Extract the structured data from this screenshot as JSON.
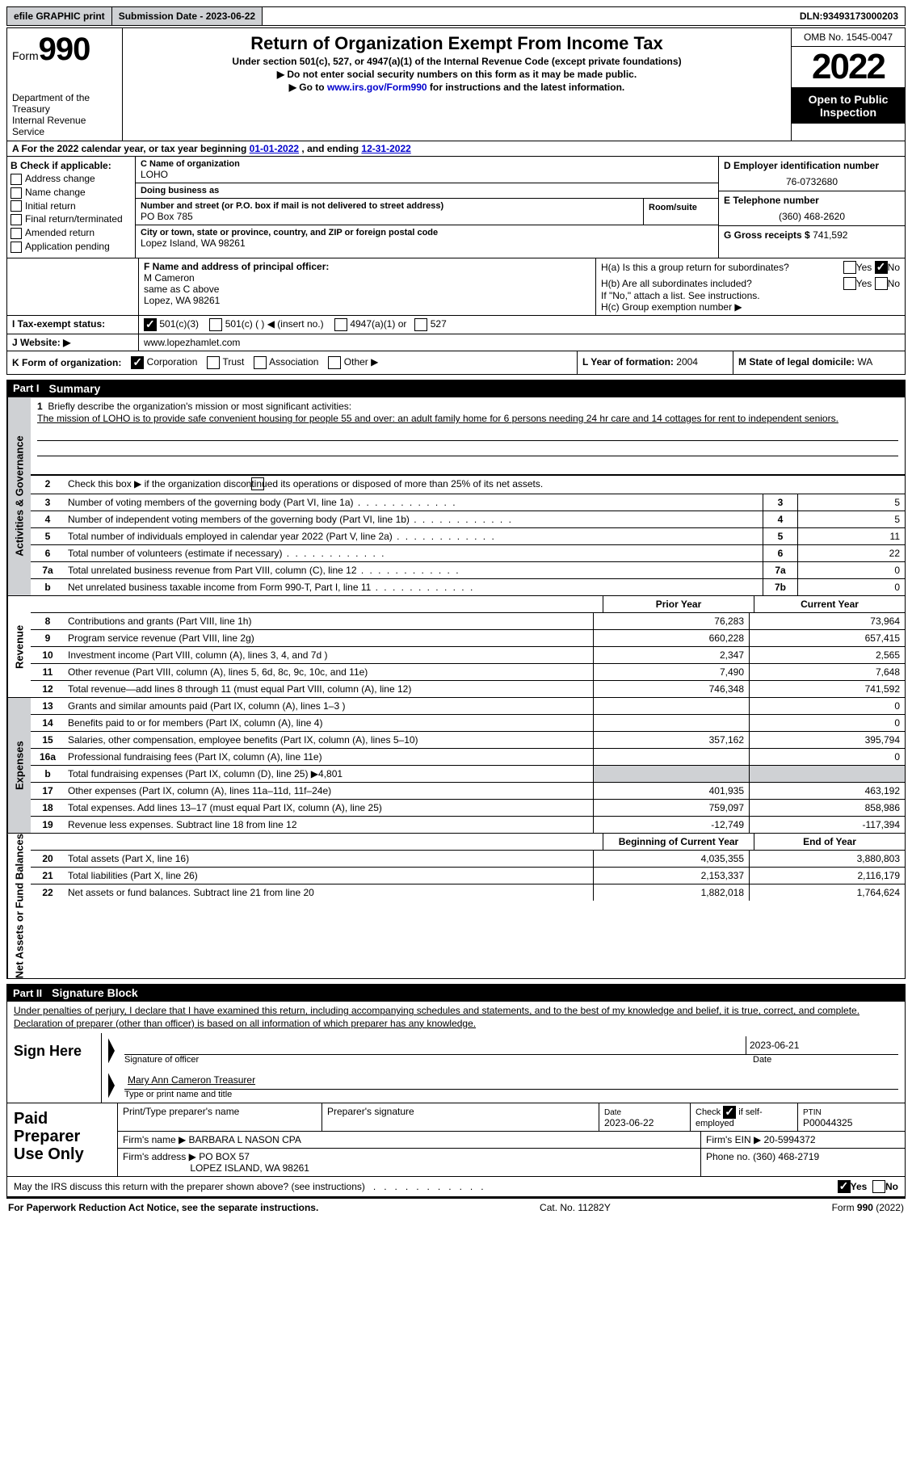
{
  "topbar": {
    "efile": "efile GRAPHIC print",
    "submission": "Submission Date - 2023-06-22",
    "dln_label": "DLN:",
    "dln": "93493173000203"
  },
  "header": {
    "form_prefix": "Form",
    "form_number": "990",
    "dept": "Department of the Treasury",
    "irs": "Internal Revenue Service",
    "title": "Return of Organization Exempt From Income Tax",
    "subtitle": "Under section 501(c), 527, or 4947(a)(1) of the Internal Revenue Code (except private foundations)",
    "warning1": "▶ Do not enter social security numbers on this form as it may be made public.",
    "warning2_prefix": "▶ Go to ",
    "warning2_link": "www.irs.gov/Form990",
    "warning2_suffix": " for instructions and the latest information.",
    "omb": "OMB No. 1545-0047",
    "year": "2022",
    "open": "Open to Public Inspection"
  },
  "sectionA": {
    "prefix": "A For the 2022 calendar year, or tax year beginning ",
    "begin": "01-01-2022",
    "mid": "  , and ending ",
    "end": "12-31-2022"
  },
  "entity": {
    "b_label": "B Check if applicable:",
    "checks": [
      "Address change",
      "Name change",
      "Initial return",
      "Final return/terminated",
      "Amended return",
      "Application pending"
    ],
    "c_label": "C Name of organization",
    "name": "LOHO",
    "dba_label": "Doing business as",
    "dba": "",
    "street_label": "Number and street (or P.O. box if mail is not delivered to street address)",
    "room_label": "Room/suite",
    "street": "PO Box 785",
    "city_label": "City or town, state or province, country, and ZIP or foreign postal code",
    "city": "Lopez Island, WA  98261",
    "d_label": "D Employer identification number",
    "ein": "76-0732680",
    "e_label": "E Telephone number",
    "phone": "(360) 468-2620",
    "g_label": "G Gross receipts $",
    "gross": "741,592"
  },
  "officer": {
    "f_label": "F Name and address of principal officer:",
    "name": "M Cameron",
    "addr1": "same as C above",
    "addr2": "Lopez, WA  98261",
    "ha": "H(a)  Is this a group return for subordinates?",
    "hb": "H(b)  Are all subordinates included?",
    "hb_note": "If \"No,\" attach a list. See instructions.",
    "hc": "H(c)  Group exemption number ▶",
    "yes": "Yes",
    "no": "No"
  },
  "status": {
    "i_label": "I  Tax-exempt status:",
    "s1": "501(c)(3)",
    "s2": "501(c) (    ) ◀ (insert no.)",
    "s3": "4947(a)(1) or",
    "s4": "527",
    "j_label": "J  Website: ▶",
    "website": "www.lopezhamlet.com"
  },
  "formorg": {
    "k_label": "K Form of organization:",
    "corp": "Corporation",
    "trust": "Trust",
    "assoc": "Association",
    "other": "Other ▶",
    "l_label": "L Year of formation:",
    "l_val": "2004",
    "m_label": "M State of legal domicile:",
    "m_val": "WA"
  },
  "partI": {
    "num": "Part I",
    "title": "Summary",
    "mission_label": "Briefly describe the organization's mission or most significant activities:",
    "mission": "The mission of LOHO is to provide safe convenient housing for people 55 and over: an adult family home for 6 persons needing 24 hr care and 14 cottages for rent to independent seniors.",
    "line2": "Check this box ▶      if the organization discontinued its operations or disposed of more than 25% of its net assets.",
    "vtab_ag": "Activities & Governance",
    "vtab_rev": "Revenue",
    "vtab_exp": "Expenses",
    "vtab_net": "Net Assets or Fund Balances",
    "prior": "Prior Year",
    "current": "Current Year",
    "begin": "Beginning of Current Year",
    "endyr": "End of Year",
    "lines_single": [
      {
        "n": "3",
        "d": "Number of voting members of the governing body (Part VI, line 1a)",
        "box": "3",
        "v": "5"
      },
      {
        "n": "4",
        "d": "Number of independent voting members of the governing body (Part VI, line 1b)",
        "box": "4",
        "v": "5"
      },
      {
        "n": "5",
        "d": "Total number of individuals employed in calendar year 2022 (Part V, line 2a)",
        "box": "5",
        "v": "11"
      },
      {
        "n": "6",
        "d": "Total number of volunteers (estimate if necessary)",
        "box": "6",
        "v": "22"
      },
      {
        "n": "7a",
        "d": "Total unrelated business revenue from Part VIII, column (C), line 12",
        "box": "7a",
        "v": "0"
      },
      {
        "n": "b",
        "d": "Net unrelated business taxable income from Form 990-T, Part I, line 11",
        "box": "7b",
        "v": "0"
      }
    ],
    "revenue": [
      {
        "n": "8",
        "d": "Contributions and grants (Part VIII, line 1h)",
        "p": "76,283",
        "c": "73,964"
      },
      {
        "n": "9",
        "d": "Program service revenue (Part VIII, line 2g)",
        "p": "660,228",
        "c": "657,415"
      },
      {
        "n": "10",
        "d": "Investment income (Part VIII, column (A), lines 3, 4, and 7d )",
        "p": "2,347",
        "c": "2,565"
      },
      {
        "n": "11",
        "d": "Other revenue (Part VIII, column (A), lines 5, 6d, 8c, 9c, 10c, and 11e)",
        "p": "7,490",
        "c": "7,648"
      },
      {
        "n": "12",
        "d": "Total revenue—add lines 8 through 11 (must equal Part VIII, column (A), line 12)",
        "p": "746,348",
        "c": "741,592"
      }
    ],
    "expenses": [
      {
        "n": "13",
        "d": "Grants and similar amounts paid (Part IX, column (A), lines 1–3 )",
        "p": "",
        "c": "0"
      },
      {
        "n": "14",
        "d": "Benefits paid to or for members (Part IX, column (A), line 4)",
        "p": "",
        "c": "0"
      },
      {
        "n": "15",
        "d": "Salaries, other compensation, employee benefits (Part IX, column (A), lines 5–10)",
        "p": "357,162",
        "c": "395,794"
      },
      {
        "n": "16a",
        "d": "Professional fundraising fees (Part IX, column (A), line 11e)",
        "p": "",
        "c": "0"
      },
      {
        "n": "b",
        "d": "Total fundraising expenses (Part IX, column (D), line 25) ▶4,801",
        "p": "shade",
        "c": "shade"
      },
      {
        "n": "17",
        "d": "Other expenses (Part IX, column (A), lines 11a–11d, 11f–24e)",
        "p": "401,935",
        "c": "463,192"
      },
      {
        "n": "18",
        "d": "Total expenses. Add lines 13–17 (must equal Part IX, column (A), line 25)",
        "p": "759,097",
        "c": "858,986"
      },
      {
        "n": "19",
        "d": "Revenue less expenses. Subtract line 18 from line 12",
        "p": "-12,749",
        "c": "-117,394"
      }
    ],
    "netassets": [
      {
        "n": "20",
        "d": "Total assets (Part X, line 16)",
        "p": "4,035,355",
        "c": "3,880,803"
      },
      {
        "n": "21",
        "d": "Total liabilities (Part X, line 26)",
        "p": "2,153,337",
        "c": "2,116,179"
      },
      {
        "n": "22",
        "d": "Net assets or fund balances. Subtract line 21 from line 20",
        "p": "1,882,018",
        "c": "1,764,624"
      }
    ]
  },
  "partII": {
    "num": "Part II",
    "title": "Signature Block",
    "declare": "Under penalties of perjury, I declare that I have examined this return, including accompanying schedules and statements, and to the best of my knowledge and belief, it is true, correct, and complete. Declaration of preparer (other than officer) is based on all information of which preparer has any knowledge.",
    "sign_here": "Sign Here",
    "sig_off": "Signature of officer",
    "date": "Date",
    "sig_date": "2023-06-21",
    "printed": "Mary Ann Cameron  Treasurer",
    "printed_label": "Type or print name and title"
  },
  "preparer": {
    "label": "Paid Preparer Use Only",
    "h1": "Print/Type preparer's name",
    "h2": "Preparer's signature",
    "h3_l": "Date",
    "h3": "2023-06-22",
    "h4": "Check         if self-employed",
    "h5_l": "PTIN",
    "h5": "P00044325",
    "firm_label": "Firm's name    ▶",
    "firm": "BARBARA L NASON CPA",
    "ein_label": "Firm's EIN ▶",
    "ein": "20-5994372",
    "addr_label": "Firm's address ▶",
    "addr1": "PO BOX 57",
    "addr2": "LOPEZ ISLAND, WA  98261",
    "phone_label": "Phone no.",
    "phone": "(360) 468-2719"
  },
  "discuss": {
    "q": "May the IRS discuss this return with the preparer shown above? (see instructions)",
    "yes": "Yes",
    "no": "No"
  },
  "footer": {
    "left": "For Paperwork Reduction Act Notice, see the separate instructions.",
    "mid": "Cat. No. 11282Y",
    "right": "Form 990 (2022)"
  }
}
